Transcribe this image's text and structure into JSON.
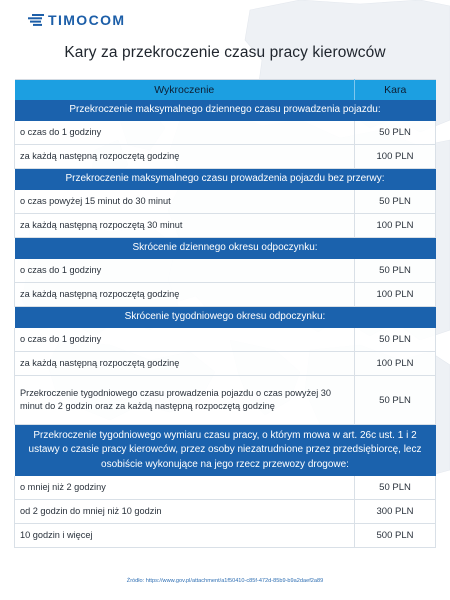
{
  "logo": {
    "text": "TIMOCOM"
  },
  "title": "Kary za przekroczenie czasu pracy kierowców",
  "table": {
    "headers": {
      "offense": "Wykroczenie",
      "penalty": "Kara"
    },
    "sections": [
      {
        "heading": "Przekroczenie maksymalnego dziennego czasu prowadzenia pojazdu:",
        "rows": [
          {
            "offense": "o czas do 1 godziny",
            "penalty": "50 PLN"
          },
          {
            "offense": "za każdą następną rozpoczętą godzinę",
            "penalty": "100 PLN"
          }
        ]
      },
      {
        "heading": "Przekroczenie maksymalnego czasu prowadzenia pojazdu bez przerwy:",
        "rows": [
          {
            "offense": "o czas powyżej 15 minut do 30 minut",
            "penalty": "50 PLN"
          },
          {
            "offense": "za każdą następną rozpoczętą 30 minut",
            "penalty": "100 PLN"
          }
        ]
      },
      {
        "heading": "Skrócenie dziennego okresu odpoczynku:",
        "rows": [
          {
            "offense": "o czas do 1 godziny",
            "penalty": "50 PLN"
          },
          {
            "offense": "za każdą następną rozpoczętą godzinę",
            "penalty": "100 PLN"
          }
        ]
      },
      {
        "heading": "Skrócenie tygodniowego okresu odpoczynku:",
        "rows": [
          {
            "offense": "o czas do 1 godziny",
            "penalty": "50 PLN"
          },
          {
            "offense": "za  każdą następną rozpoczętą godzinę",
            "penalty": "100 PLN"
          },
          {
            "offense": "Przekroczenie  tygodniowego czasu prowadzenia pojazdu o czas powyżej 30 minut do 2 godzin oraz za każdą następną rozpoczętą godzinę",
            "penalty": "50 PLN"
          }
        ]
      },
      {
        "heading": "Przekroczenie  tygodniowego wymiaru czasu pracy, o którym mowa w art. 26c ust. 1 i 2 ustawy o czasie pracy kierowców, przez osoby niezatrudnione przez przedsiębiorcę, lecz osobiście wykonujące na jego rzecz przewozy drogowe:",
        "rows": [
          {
            "offense": "o mniej niż 2 godziny",
            "penalty": "50 PLN"
          },
          {
            "offense": "od 2 godzin do mniej niż 10 godzin",
            "penalty": "300 PLN"
          },
          {
            "offense": "10 godzin i więcej",
            "penalty": "500 PLN"
          }
        ]
      }
    ]
  },
  "source": "Źródło: https://www.gov.pl/attachment/a1f50410-c85f-472d-85b9-b9a2daef2a89",
  "colors": {
    "header_bg": "#1c9fe1",
    "section_bg": "#1b62ad",
    "brand": "#1c5ea8",
    "source_link": "#2f6fb3"
  }
}
